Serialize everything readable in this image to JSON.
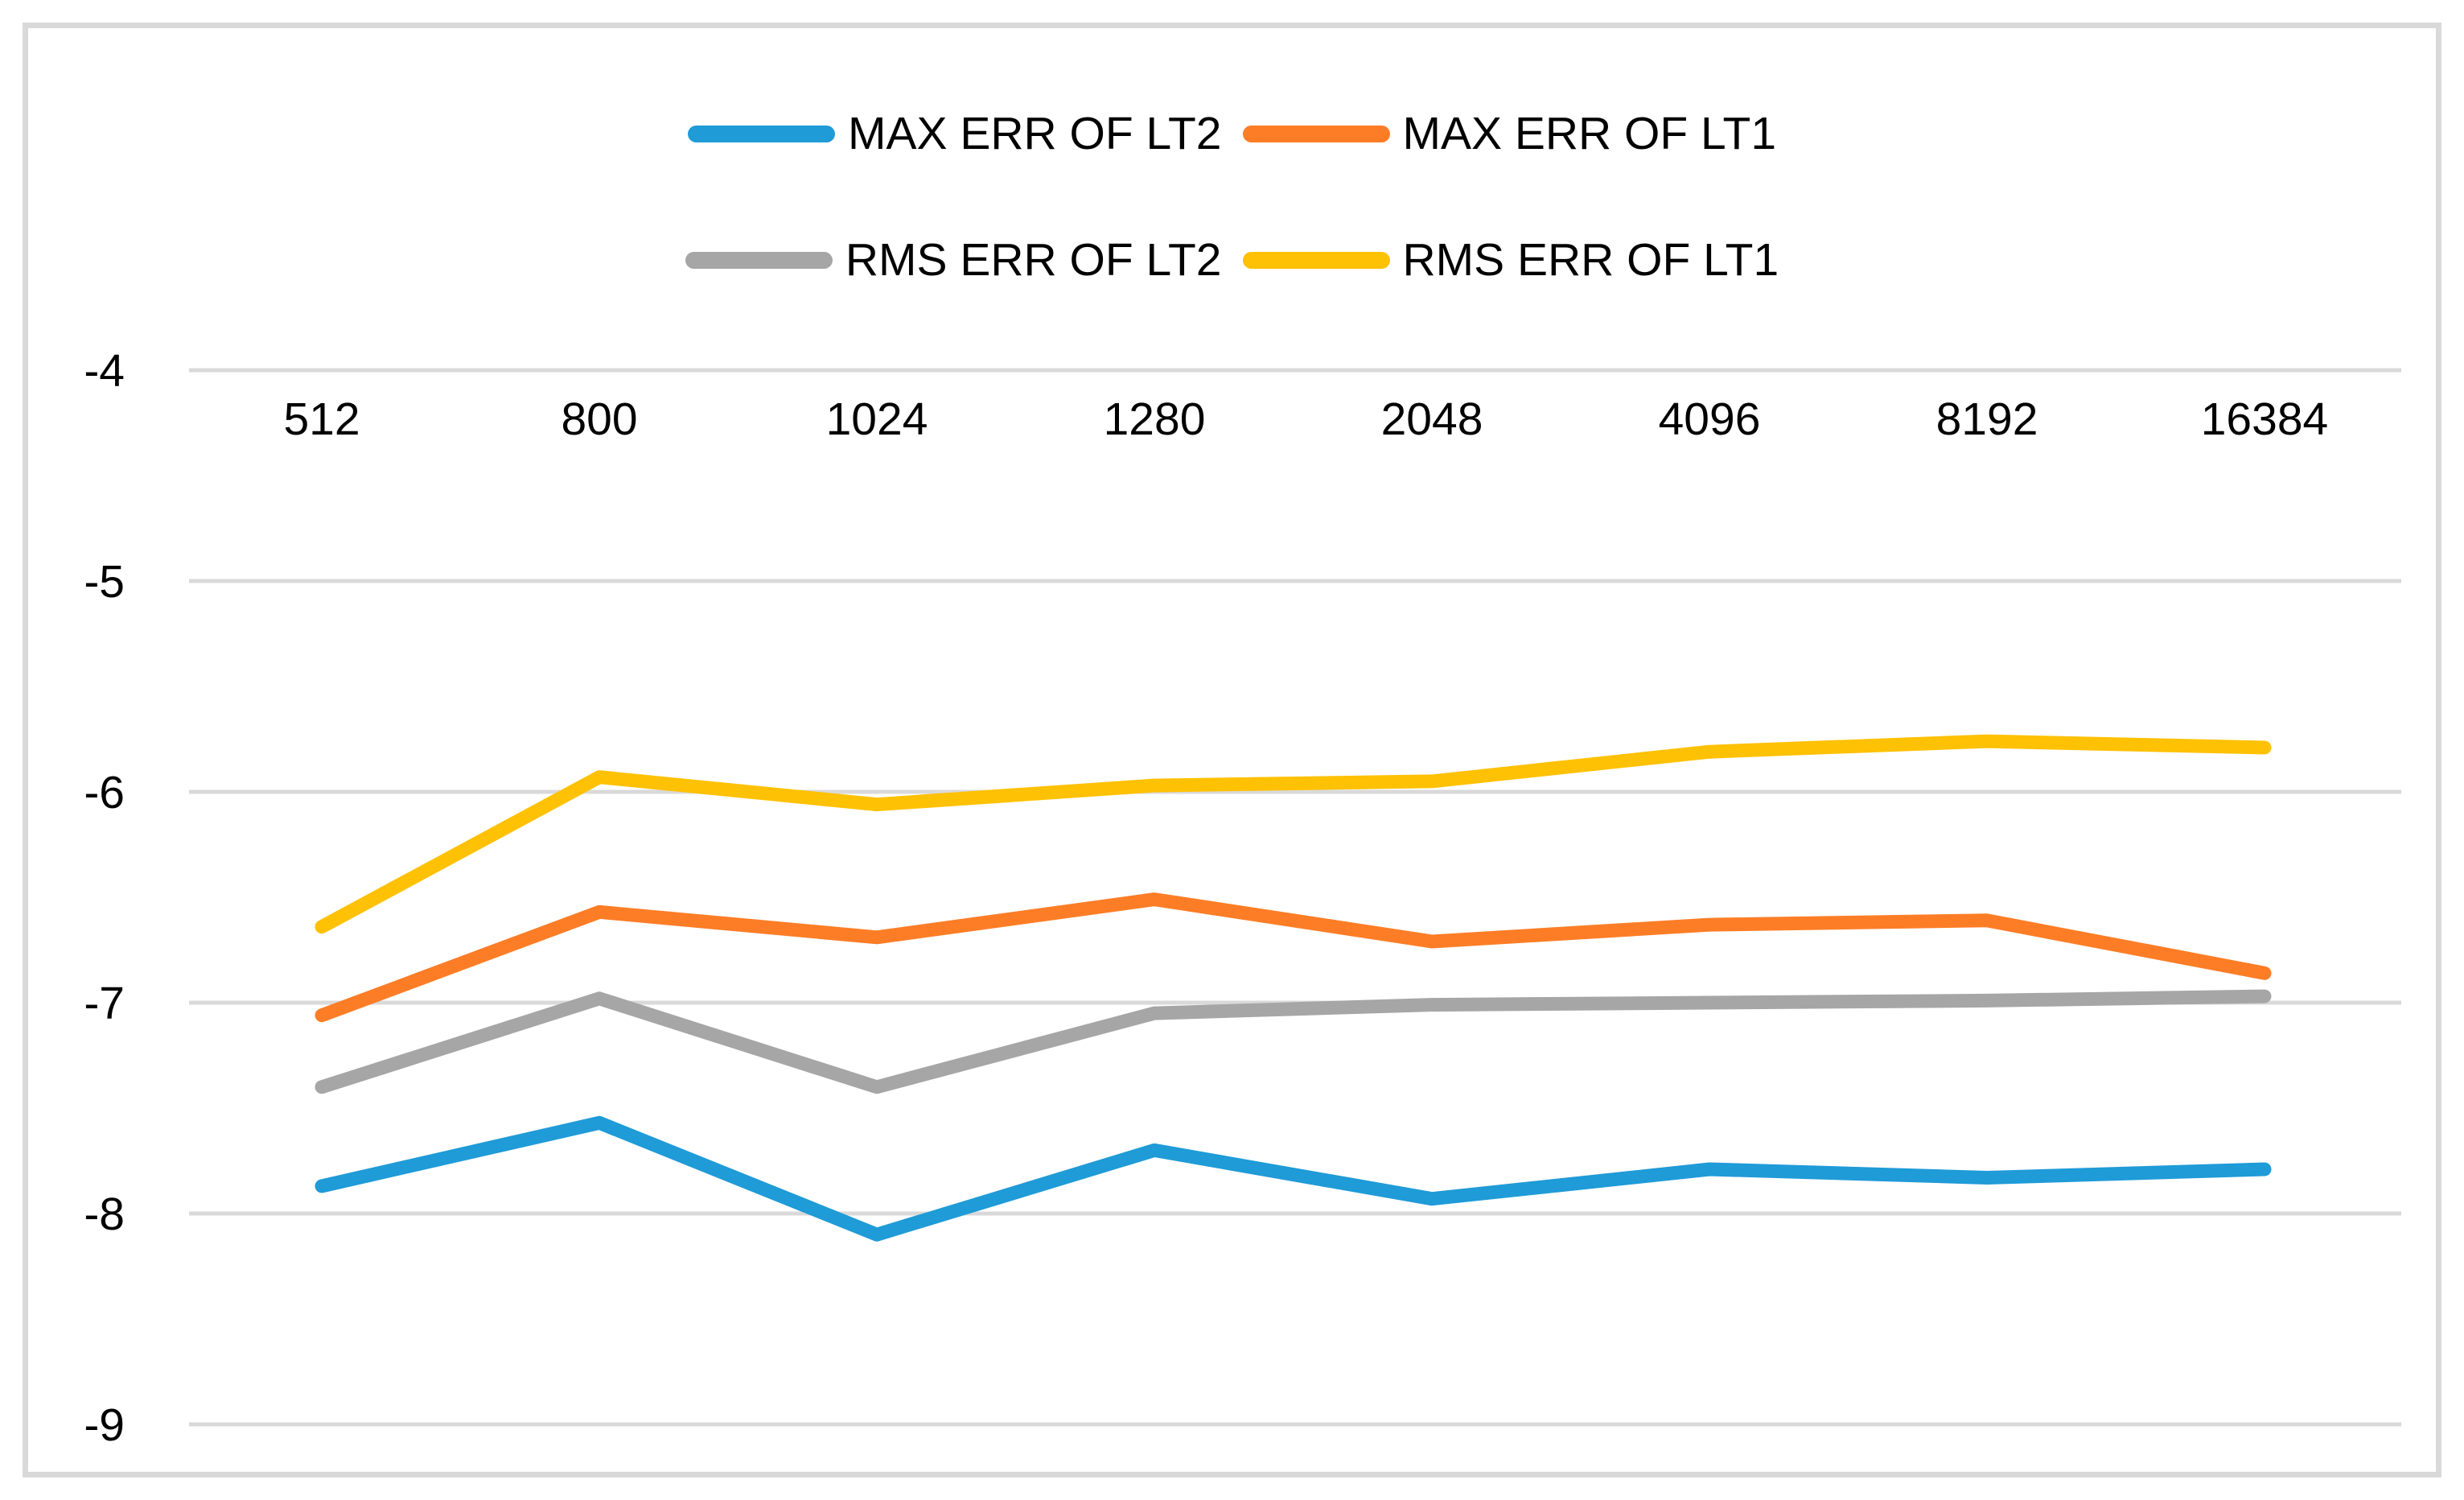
{
  "figure": {
    "kind": "excel-style line chart figure",
    "background": "#FFFFFF",
    "border_color": "#D9D9D9"
  },
  "chart_data": {
    "type": "line",
    "title": "",
    "xlabel": "",
    "ylabel": "",
    "categories": [
      "512",
      "800",
      "1024",
      "1280",
      "2048",
      "4096",
      "8192",
      "16384"
    ],
    "series": [
      {
        "name": "MAX ERR OF LT2",
        "color": "#1F9BD7",
        "values": [
          -7.87,
          -7.57,
          -8.1,
          -7.7,
          -7.93,
          -7.79,
          -7.83,
          -7.79
        ]
      },
      {
        "name": "MAX ERR OF LT1",
        "color": "#FD7D26",
        "values": [
          -7.06,
          -6.57,
          -6.69,
          -6.51,
          -6.71,
          -6.63,
          -6.61,
          -6.86
        ]
      },
      {
        "name": "RMS ERR OF LT2",
        "color": "#A6A6A6",
        "values": [
          -7.4,
          -6.98,
          -7.4,
          -7.05,
          -7.01,
          -7.0,
          -6.99,
          -6.97
        ]
      },
      {
        "name": "RMS ERR OF LT1",
        "color": "#FFC103",
        "values": [
          -6.64,
          -5.93,
          -6.06,
          -5.97,
          -5.95,
          -5.81,
          -5.76,
          -5.79
        ]
      }
    ],
    "yticks": [
      -4,
      -5,
      -6,
      -7,
      -8,
      -9
    ],
    "ylim": [
      -9.4,
      -3.85
    ],
    "grid": "horizontal",
    "gridline_color": "#D9D9D9",
    "text_color": "#000000",
    "legend_position": "top-center, two rows",
    "x_tick_label_position": "below the -4 gridline (axis labels at top, all values negative)"
  }
}
